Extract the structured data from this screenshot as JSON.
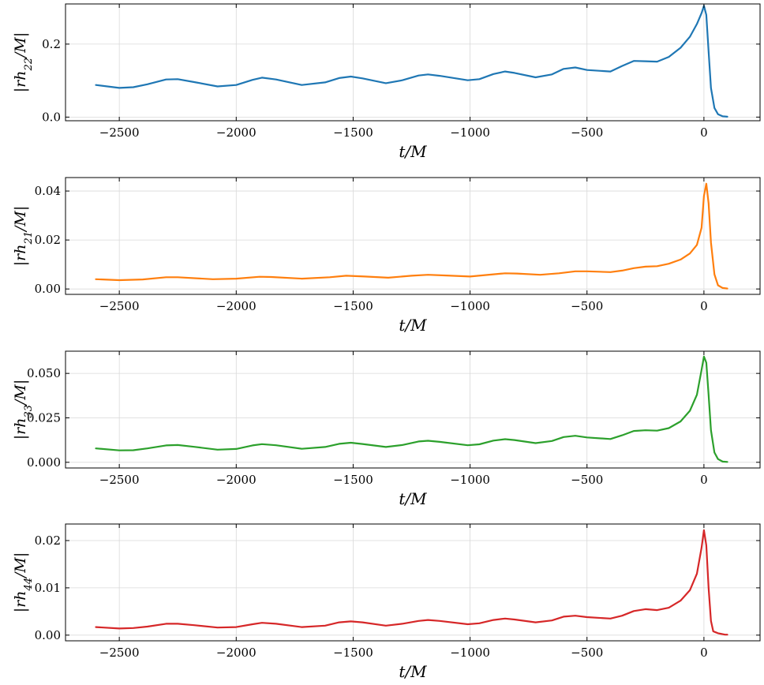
{
  "chart_data": [
    {
      "type": "line",
      "xlabel": "t/M",
      "ylabel": "|rh22/M|",
      "ylabel_main": "|rh",
      "ylabel_sub": "22",
      "ylabel_tail": "/M|",
      "xlim": [
        -2730,
        240
      ],
      "ylim": [
        -0.01,
        0.31
      ],
      "xticks": [
        -2500,
        -2000,
        -1500,
        -1000,
        -500,
        0
      ],
      "yticks": [
        0.0,
        0.2
      ],
      "ytick_labels": [
        "0.0",
        "0.2"
      ],
      "grid": true,
      "color": "#1f77b4",
      "series": [
        {
          "x": [
            -2600,
            -2500,
            -2440,
            -2380,
            -2300,
            -2250,
            -2180,
            -2080,
            -2000,
            -1930,
            -1890,
            -1830,
            -1720,
            -1620,
            -1560,
            -1510,
            -1460,
            -1360,
            -1290,
            -1220,
            -1180,
            -1130,
            -1010,
            -960,
            -900,
            -850,
            -810,
            -720,
            -650,
            -600,
            -550,
            -500,
            -400,
            -350,
            -300,
            -250,
            -200,
            -150,
            -100,
            -60,
            -30,
            -10,
            0,
            10,
            20,
            30,
            45,
            60,
            80,
            100
          ],
          "y": [
            0.088,
            0.08,
            0.082,
            0.09,
            0.103,
            0.104,
            0.096,
            0.084,
            0.088,
            0.102,
            0.108,
            0.103,
            0.088,
            0.095,
            0.107,
            0.111,
            0.106,
            0.093,
            0.101,
            0.114,
            0.117,
            0.113,
            0.101,
            0.104,
            0.118,
            0.125,
            0.121,
            0.109,
            0.117,
            0.132,
            0.136,
            0.129,
            0.125,
            0.14,
            0.154,
            0.153,
            0.152,
            0.165,
            0.19,
            0.22,
            0.255,
            0.285,
            0.305,
            0.28,
            0.18,
            0.08,
            0.025,
            0.008,
            0.002,
            0.001
          ]
        }
      ]
    },
    {
      "type": "line",
      "xlabel": "t/M",
      "ylabel": "|rh21/M|",
      "ylabel_main": "|rh",
      "ylabel_sub": "21",
      "ylabel_tail": "/M|",
      "xlim": [
        -2730,
        240
      ],
      "ylim": [
        -0.0022,
        0.0455
      ],
      "xticks": [
        -2500,
        -2000,
        -1500,
        -1000,
        -500,
        0
      ],
      "yticks": [
        0.0,
        0.02,
        0.04
      ],
      "ytick_labels": [
        "0.00",
        "0.02",
        "0.04"
      ],
      "grid": true,
      "color": "#ff7f0e",
      "series": [
        {
          "x": [
            -2600,
            -2500,
            -2400,
            -2300,
            -2250,
            -2100,
            -2000,
            -1900,
            -1850,
            -1720,
            -1600,
            -1530,
            -1450,
            -1350,
            -1250,
            -1180,
            -1100,
            -1000,
            -900,
            -850,
            -800,
            -700,
            -620,
            -550,
            -500,
            -400,
            -350,
            -300,
            -250,
            -200,
            -150,
            -100,
            -60,
            -30,
            -10,
            0,
            10,
            20,
            30,
            45,
            60,
            80,
            100
          ],
          "y": [
            0.004,
            0.0036,
            0.0039,
            0.0048,
            0.0048,
            0.004,
            0.0042,
            0.005,
            0.0049,
            0.0042,
            0.0048,
            0.0054,
            0.0051,
            0.0046,
            0.0054,
            0.0058,
            0.0055,
            0.0051,
            0.006,
            0.0064,
            0.0063,
            0.0058,
            0.0064,
            0.0072,
            0.0072,
            0.0069,
            0.0075,
            0.0085,
            0.0091,
            0.0093,
            0.0103,
            0.012,
            0.0145,
            0.018,
            0.025,
            0.038,
            0.043,
            0.035,
            0.019,
            0.006,
            0.0015,
            0.0004,
            0.0002
          ]
        }
      ]
    },
    {
      "type": "line",
      "xlabel": "t/M",
      "ylabel": "|rh33/M|",
      "ylabel_main": "|rh",
      "ylabel_sub": "33",
      "ylabel_tail": "/M|",
      "xlim": [
        -2730,
        240
      ],
      "ylim": [
        -0.0032,
        0.0625
      ],
      "xticks": [
        -2500,
        -2000,
        -1500,
        -1000,
        -500,
        0
      ],
      "yticks": [
        0.0,
        0.025,
        0.05
      ],
      "ytick_labels": [
        "0.000",
        "0.025",
        "0.050"
      ],
      "grid": true,
      "color": "#2ca02c",
      "series": [
        {
          "x": [
            -2600,
            -2500,
            -2440,
            -2380,
            -2300,
            -2250,
            -2180,
            -2080,
            -2000,
            -1930,
            -1890,
            -1830,
            -1720,
            -1620,
            -1560,
            -1510,
            -1460,
            -1360,
            -1290,
            -1220,
            -1180,
            -1130,
            -1010,
            -960,
            -900,
            -850,
            -810,
            -720,
            -650,
            -600,
            -550,
            -500,
            -400,
            -350,
            -300,
            -250,
            -200,
            -150,
            -100,
            -60,
            -30,
            -10,
            0,
            10,
            20,
            30,
            45,
            60,
            80,
            100
          ],
          "y": [
            0.0078,
            0.0067,
            0.0068,
            0.0078,
            0.0095,
            0.0097,
            0.0087,
            0.0071,
            0.0075,
            0.0095,
            0.0102,
            0.0096,
            0.0076,
            0.0086,
            0.0104,
            0.011,
            0.0103,
            0.0086,
            0.0097,
            0.0117,
            0.0121,
            0.0115,
            0.0096,
            0.0101,
            0.0122,
            0.013,
            0.0125,
            0.0108,
            0.012,
            0.0142,
            0.0149,
            0.014,
            0.0131,
            0.0152,
            0.0176,
            0.018,
            0.0178,
            0.0192,
            0.023,
            0.029,
            0.038,
            0.052,
            0.0595,
            0.056,
            0.038,
            0.018,
            0.0055,
            0.0018,
            0.0004,
            0.0002
          ]
        }
      ]
    },
    {
      "type": "line",
      "xlabel": "t/M",
      "ylabel": "|rh44/M|",
      "ylabel_main": "|rh",
      "ylabel_sub": "44",
      "ylabel_tail": "/M|",
      "xlim": [
        -2730,
        240
      ],
      "ylim": [
        -0.0012,
        0.0235
      ],
      "xticks": [
        -2500,
        -2000,
        -1500,
        -1000,
        -500,
        0
      ],
      "yticks": [
        0.0,
        0.01,
        0.02
      ],
      "ytick_labels": [
        "0.00",
        "0.01",
        "0.02"
      ],
      "grid": true,
      "color": "#d62728",
      "series": [
        {
          "x": [
            -2600,
            -2500,
            -2440,
            -2380,
            -2300,
            -2250,
            -2180,
            -2080,
            -2000,
            -1930,
            -1890,
            -1830,
            -1720,
            -1620,
            -1560,
            -1510,
            -1460,
            -1360,
            -1290,
            -1220,
            -1180,
            -1130,
            -1010,
            -960,
            -900,
            -850,
            -810,
            -720,
            -650,
            -600,
            -550,
            -500,
            -400,
            -350,
            -300,
            -250,
            -200,
            -150,
            -100,
            -60,
            -30,
            -10,
            0,
            10,
            20,
            30,
            40,
            50,
            60,
            70,
            80,
            90,
            100
          ],
          "y": [
            0.0017,
            0.0014,
            0.0015,
            0.0018,
            0.0024,
            0.0024,
            0.0021,
            0.0016,
            0.0017,
            0.0023,
            0.0026,
            0.0024,
            0.0017,
            0.002,
            0.0027,
            0.0029,
            0.0027,
            0.002,
            0.0024,
            0.003,
            0.0032,
            0.003,
            0.0023,
            0.0025,
            0.0032,
            0.0035,
            0.0033,
            0.0027,
            0.0031,
            0.0039,
            0.0041,
            0.0038,
            0.0035,
            0.0041,
            0.0051,
            0.0055,
            0.0053,
            0.0058,
            0.0073,
            0.0095,
            0.013,
            0.0185,
            0.0222,
            0.019,
            0.01,
            0.003,
            0.0008,
            0.0006,
            0.0004,
            0.0003,
            0.0002,
            0.0001,
            0.0001
          ]
        }
      ]
    }
  ]
}
